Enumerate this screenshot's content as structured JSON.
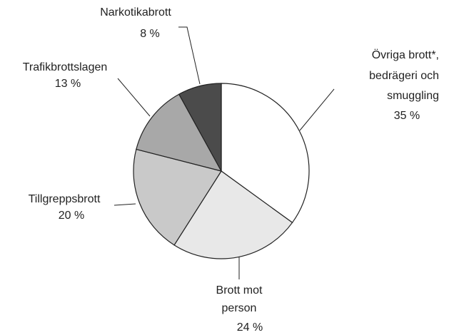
{
  "chart_data": {
    "type": "pie",
    "categories": [
      [
        "Övriga brott*,",
        "bedrägeri och",
        "smuggling"
      ],
      [
        "Brott mot",
        "person"
      ],
      [
        "Tillgreppsbrott"
      ],
      [
        "Trafikbrottslagen"
      ],
      [
        "Narkotikabrott"
      ]
    ],
    "values": [
      35,
      24,
      20,
      13,
      8
    ],
    "value_labels": [
      "35 %",
      "24 %",
      "20 %",
      "13 %",
      "8 %"
    ],
    "colors": [
      "#ffffff",
      "#e8e8e8",
      "#c9c9c9",
      "#a8a8a8",
      "#4b4b4b"
    ]
  }
}
